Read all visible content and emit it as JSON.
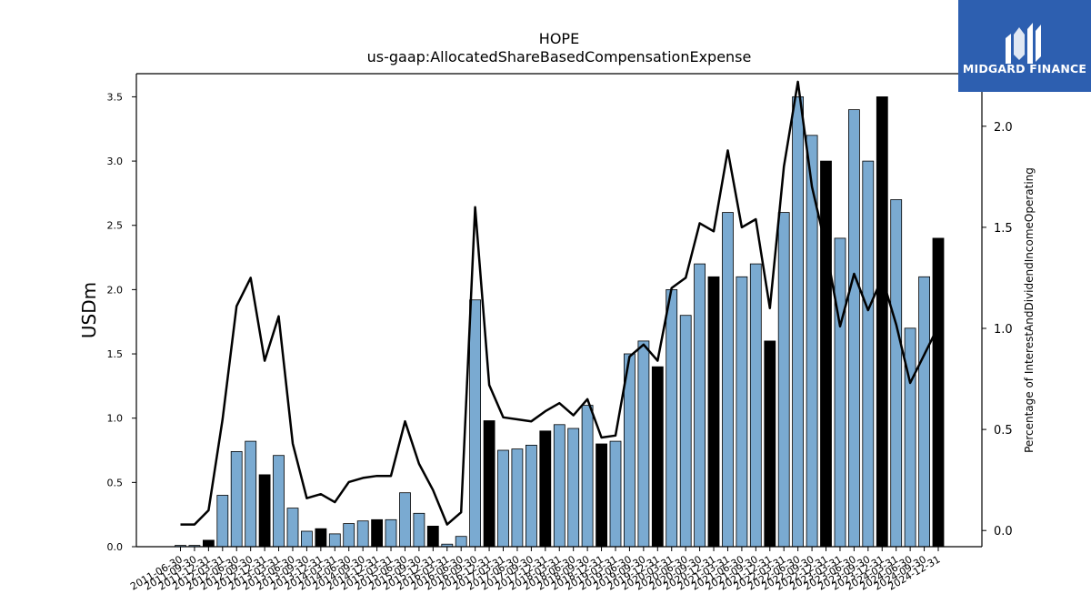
{
  "chart_data": {
    "type": "bar+line",
    "title": "HOPE",
    "subtitle": "us-gaap:AllocatedShareBasedCompensationExpense",
    "ylabel": "USDm",
    "y2label": "Percentage of InterestAndDividendIncomeOperating",
    "ylim": [
      0,
      3.68
    ],
    "y2lim": [
      -0.08,
      2.26
    ],
    "yticks": [
      "0.0",
      "0.5",
      "1.0",
      "1.5",
      "2.0",
      "2.5",
      "3.0",
      "3.5"
    ],
    "y2ticks": [
      "0.0",
      "0.5",
      "1.0",
      "1.5",
      "2.0"
    ],
    "categories": [
      "2011-06-30",
      "2011-09-30",
      "2011-12-31",
      "2012-03-31",
      "2012-06-30",
      "2012-09-30",
      "2012-12-31",
      "2013-03-31",
      "2013-06-30",
      "2013-09-30",
      "2013-12-31",
      "2014-03-31",
      "2014-06-30",
      "2014-09-30",
      "2014-12-31",
      "2015-03-31",
      "2015-06-30",
      "2015-09-30",
      "2015-12-31",
      "2016-03-31",
      "2016-06-30",
      "2016-09-30",
      "2016-12-31",
      "2017-03-31",
      "2017-06-30",
      "2017-09-30",
      "2017-12-31",
      "2018-03-31",
      "2018-06-30",
      "2018-09-30",
      "2018-12-31",
      "2019-03-31",
      "2019-06-30",
      "2019-09-30",
      "2019-12-31",
      "2020-03-31",
      "2020-06-30",
      "2020-09-30",
      "2020-12-31",
      "2021-03-31",
      "2021-06-30",
      "2021-09-30",
      "2021-12-31",
      "2022-03-31",
      "2022-06-30",
      "2022-09-30",
      "2022-12-31",
      "2023-03-31",
      "2023-06-30",
      "2023-09-30",
      "2023-12-31",
      "2024-03-31",
      "2024-06-30",
      "2024-09-30",
      "2024-12-31"
    ],
    "bar_values": [
      0.01,
      0.01,
      0.05,
      0.4,
      0.74,
      0.82,
      0.56,
      0.71,
      0.3,
      0.12,
      0.14,
      0.1,
      0.18,
      0.2,
      0.21,
      0.21,
      0.42,
      0.26,
      0.16,
      0.02,
      0.08,
      1.92,
      0.98,
      0.75,
      0.76,
      0.79,
      0.9,
      0.95,
      0.92,
      1.1,
      0.8,
      0.82,
      1.5,
      1.6,
      1.4,
      2.0,
      1.8,
      2.2,
      2.1,
      2.6,
      2.1,
      2.2,
      1.6,
      2.6,
      3.5,
      3.2,
      3.0,
      2.4,
      3.4,
      3.0,
      3.5,
      2.7,
      1.7,
      2.1,
      2.4
    ],
    "bar_highlight": [
      false,
      false,
      true,
      false,
      false,
      false,
      true,
      false,
      false,
      false,
      true,
      false,
      false,
      false,
      true,
      false,
      false,
      false,
      true,
      false,
      false,
      false,
      true,
      false,
      false,
      false,
      true,
      false,
      false,
      false,
      true,
      false,
      false,
      false,
      true,
      false,
      false,
      false,
      true,
      false,
      false,
      false,
      true,
      false,
      false,
      false,
      true,
      false,
      false,
      false,
      true,
      false,
      false,
      false,
      true
    ],
    "line_values": [
      0.03,
      0.03,
      0.1,
      0.55,
      1.11,
      1.25,
      0.84,
      1.06,
      0.43,
      0.16,
      0.18,
      0.14,
      0.24,
      0.26,
      0.27,
      0.27,
      0.54,
      0.33,
      0.2,
      0.03,
      0.09,
      1.6,
      0.72,
      0.56,
      0.55,
      0.54,
      0.59,
      0.63,
      0.57,
      0.65,
      0.46,
      0.47,
      0.86,
      0.92,
      0.84,
      1.2,
      1.25,
      1.52,
      1.48,
      1.88,
      1.5,
      1.54,
      1.1,
      1.8,
      2.22,
      1.7,
      1.4,
      1.01,
      1.27,
      1.09,
      1.25,
      1.02,
      0.73,
      0.87,
      1.01
    ],
    "colors": {
      "bar": "#7aaad1",
      "bar_highlight": "#000000",
      "line": "#000000",
      "logo_bg": "#2d5fb0"
    },
    "legend": "none",
    "grid": false
  },
  "logo": {
    "text": "MIDGARD FINANCE",
    "icon": "midgard-logo-icon"
  }
}
